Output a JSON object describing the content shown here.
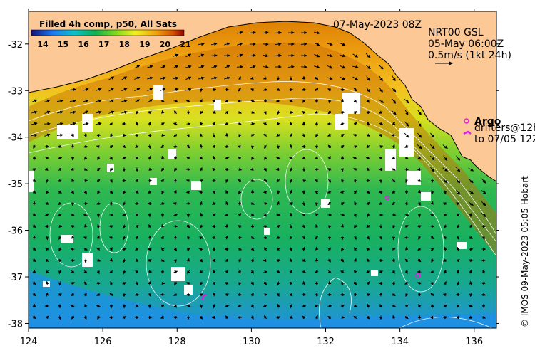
{
  "title_date": "07-May-2023 08Z",
  "colorbar": {
    "title": "Filled 4h comp, p50, All Sats",
    "ticks": [
      "14",
      "15",
      "16",
      "17",
      "18",
      "19",
      "20",
      "21"
    ]
  },
  "current_info": {
    "line1": "NRT00 GSL",
    "line2": "05-May 06:00Z",
    "scale_label": "0.5m/s (1kt 24h)"
  },
  "legend": {
    "argo_label": "Argo",
    "drifters_line1": "drifters@12h",
    "drifters_line2": "to 07/05 12Z"
  },
  "credit": "© IMOS 09-May-2023 05:05 Hobart",
  "axes": {
    "lon_ticks": [
      "124",
      "126",
      "128",
      "130",
      "132",
      "134",
      "136"
    ],
    "lat_ticks": [
      "-32",
      "-33",
      "-34",
      "-35",
      "-36",
      "-37",
      "-38"
    ],
    "lon_range": [
      124,
      136.6
    ],
    "lat_range": [
      -38.1,
      -31.3
    ]
  },
  "colors": {
    "land": "#fcc896",
    "cold": "#1e8cf0",
    "warm": "#e07000"
  }
}
